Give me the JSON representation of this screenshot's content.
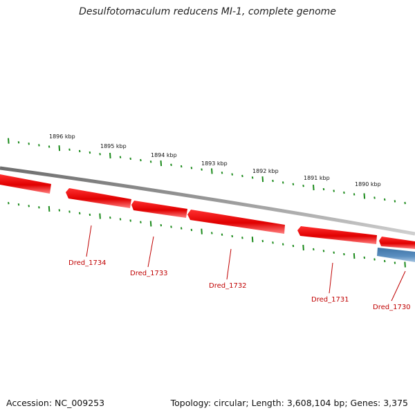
{
  "title": "Desulfotomaculum reducens MI-1, complete genome",
  "footer": {
    "accession": "Accession: NC_009253",
    "summary": "Topology: circular; Length: 3,608,104 bp; Genes: 3,375"
  },
  "ruler_labels": [
    "1896 kbp",
    "1895 kbp",
    "1894 kbp",
    "1893 kbp",
    "1892 kbp",
    "1891 kbp",
    "1890 kbp"
  ],
  "gene_labels": [
    "Dred_1734",
    "Dred_1733",
    "Dred_1732",
    "Dred_1731",
    "Dred_1730"
  ],
  "colors": {
    "reverse_gene": "#ff0000",
    "forward_gene": "#4a7fb0",
    "backbone": "#808080",
    "tick": "#1a8a1a",
    "label": "#c00000"
  }
}
